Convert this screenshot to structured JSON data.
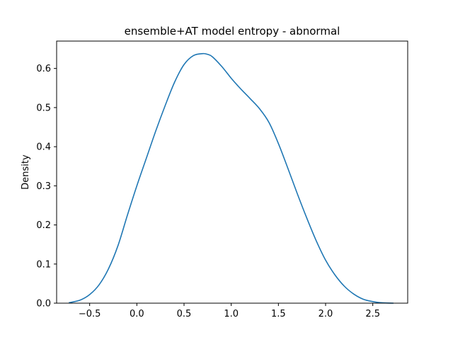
{
  "chart_data": {
    "type": "line",
    "title": "ensemble+AT model entropy - abnormal",
    "xlabel": "",
    "ylabel": "Density",
    "xlim": [
      -0.85,
      2.87
    ],
    "ylim": [
      0.0,
      0.67
    ],
    "grid": false,
    "x_ticks": [
      -0.5,
      0.0,
      0.5,
      1.0,
      1.5,
      2.0,
      2.5
    ],
    "x_tick_labels": [
      "−0.5",
      "0.0",
      "0.5",
      "1.0",
      "1.5",
      "2.0",
      "2.5"
    ],
    "y_ticks": [
      0.0,
      0.1,
      0.2,
      0.3,
      0.4,
      0.5,
      0.6
    ],
    "y_tick_labels": [
      "0.0",
      "0.1",
      "0.2",
      "0.3",
      "0.4",
      "0.5",
      "0.6"
    ],
    "series": [
      {
        "color": "#1f77b4",
        "x": [
          -0.72,
          -0.6,
          -0.5,
          -0.4,
          -0.3,
          -0.2,
          -0.1,
          0.0,
          0.1,
          0.2,
          0.3,
          0.4,
          0.5,
          0.6,
          0.7,
          0.75,
          0.8,
          0.9,
          1.0,
          1.1,
          1.2,
          1.3,
          1.4,
          1.5,
          1.6,
          1.7,
          1.8,
          1.9,
          2.0,
          2.1,
          2.2,
          2.3,
          2.4,
          2.5,
          2.6,
          2.72
        ],
        "y": [
          0.001,
          0.008,
          0.022,
          0.047,
          0.088,
          0.147,
          0.225,
          0.3,
          0.37,
          0.44,
          0.505,
          0.565,
          0.61,
          0.633,
          0.638,
          0.636,
          0.63,
          0.605,
          0.575,
          0.548,
          0.523,
          0.497,
          0.462,
          0.408,
          0.345,
          0.28,
          0.218,
          0.16,
          0.11,
          0.072,
          0.043,
          0.023,
          0.01,
          0.004,
          0.001,
          0.0
        ]
      }
    ]
  }
}
